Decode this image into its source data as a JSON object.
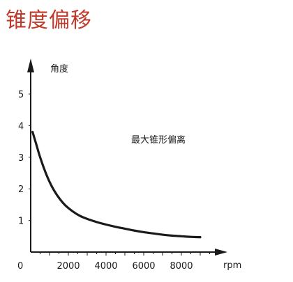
{
  "title": "锥度偏移",
  "chart_data": {
    "type": "line",
    "ylabel": "角度",
    "xlabel": "rpm",
    "annotation": "最大锥形偏离",
    "origin_label": "0",
    "x_ticks": [
      2000,
      4000,
      6000,
      8000
    ],
    "x_tick_labels": [
      "2000",
      "4000",
      "6000",
      "8000"
    ],
    "y_ticks": [
      1,
      2,
      3,
      4,
      5
    ],
    "y_tick_labels": [
      "1",
      "2",
      "3",
      "4",
      "5"
    ],
    "xlim": [
      0,
      10000
    ],
    "ylim": [
      0,
      5.5
    ],
    "grid": false,
    "series": [
      {
        "color": "#1a1a1a",
        "x": [
          100,
          300,
          500,
          800,
          1100,
          1400,
          1800,
          2200,
          2600,
          3000,
          3500,
          4000,
          4500,
          5000,
          5500,
          6000,
          6500,
          7000,
          7500,
          8000,
          8500,
          9000
        ],
        "y": [
          3.8,
          3.4,
          3.0,
          2.5,
          2.1,
          1.8,
          1.5,
          1.3,
          1.15,
          1.05,
          0.95,
          0.87,
          0.8,
          0.74,
          0.68,
          0.63,
          0.59,
          0.55,
          0.52,
          0.5,
          0.48,
          0.47
        ]
      }
    ]
  }
}
